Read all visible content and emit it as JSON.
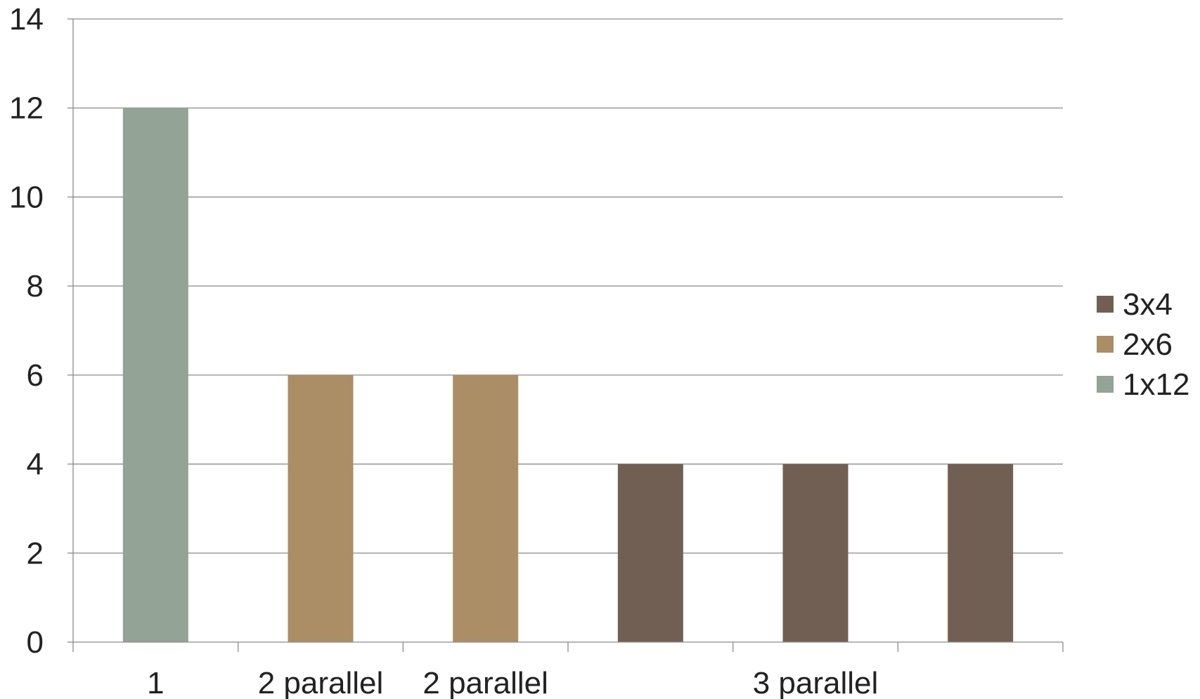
{
  "chart_data": {
    "type": "bar",
    "title": "",
    "xlabel": "",
    "ylabel": "",
    "ylim": [
      0,
      14
    ],
    "y_ticks": [
      0,
      2,
      4,
      6,
      8,
      10,
      12,
      14
    ],
    "grid": true,
    "legend_position": "right",
    "slots": 6,
    "category_labels": [
      {
        "label": "1",
        "slots": [
          0
        ]
      },
      {
        "label": "2 parallel",
        "slots": [
          1
        ]
      },
      {
        "label": "2 parallel",
        "slots": [
          2
        ]
      },
      {
        "label": "3 parallel",
        "slots": [
          3,
          4,
          5
        ]
      }
    ],
    "bars": [
      {
        "slot": 0,
        "series": "1x12",
        "value": 12
      },
      {
        "slot": 1,
        "series": "2x6",
        "value": 6
      },
      {
        "slot": 2,
        "series": "2x6",
        "value": 6
      },
      {
        "slot": 3,
        "series": "3x4",
        "value": 4
      },
      {
        "slot": 4,
        "series": "3x4",
        "value": 4
      },
      {
        "slot": 5,
        "series": "3x4",
        "value": 4
      }
    ],
    "series": [
      {
        "name": "3x4",
        "color": "#725f53"
      },
      {
        "name": "2x6",
        "color": "#ab8e66"
      },
      {
        "name": "1x12",
        "color": "#93a396"
      }
    ]
  }
}
